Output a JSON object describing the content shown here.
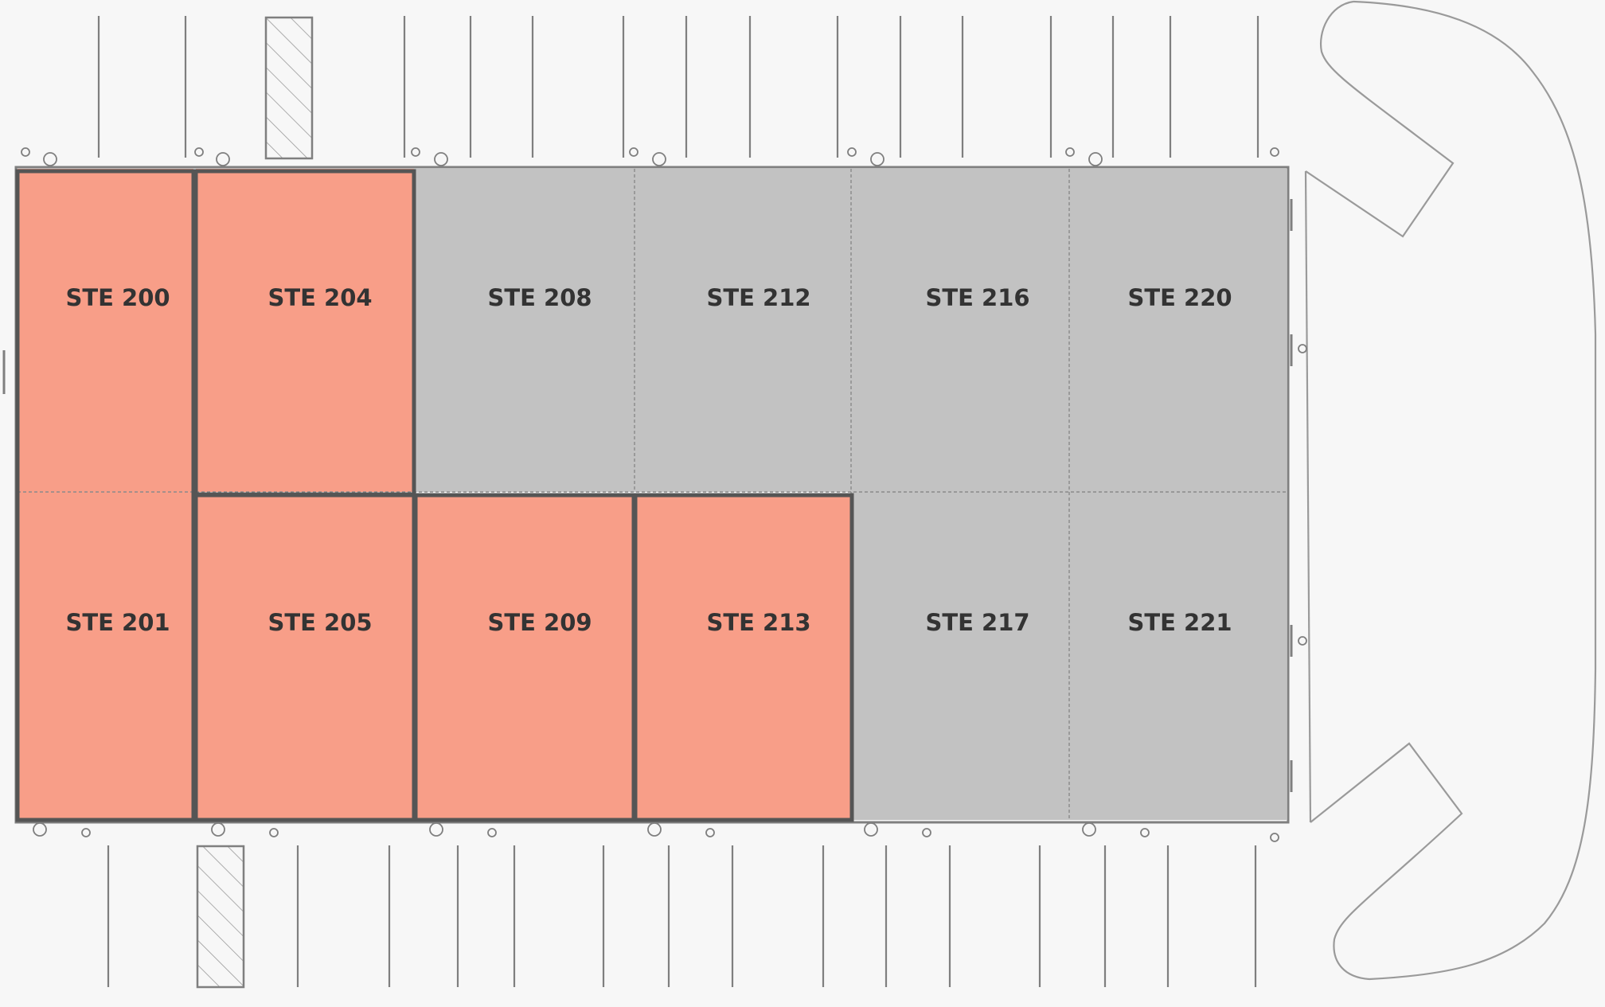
{
  "colors": {
    "background": "#f7f7f7",
    "occupied": "#f89e88",
    "vacant": "#c2c2c2",
    "outline": "#555555",
    "linework": "#7f7f7f",
    "label": "#333333"
  },
  "suites": [
    {
      "id": "STE 200",
      "status": "occupied"
    },
    {
      "id": "STE 204",
      "status": "occupied"
    },
    {
      "id": "STE 208",
      "status": "vacant"
    },
    {
      "id": "STE 212",
      "status": "vacant"
    },
    {
      "id": "STE 216",
      "status": "vacant"
    },
    {
      "id": "STE 220",
      "status": "vacant"
    },
    {
      "id": "STE 201",
      "status": "occupied"
    },
    {
      "id": "STE 205",
      "status": "occupied"
    },
    {
      "id": "STE 209",
      "status": "occupied"
    },
    {
      "id": "STE 213",
      "status": "occupied"
    },
    {
      "id": "STE 217",
      "status": "vacant"
    },
    {
      "id": "STE 221",
      "status": "vacant"
    }
  ]
}
